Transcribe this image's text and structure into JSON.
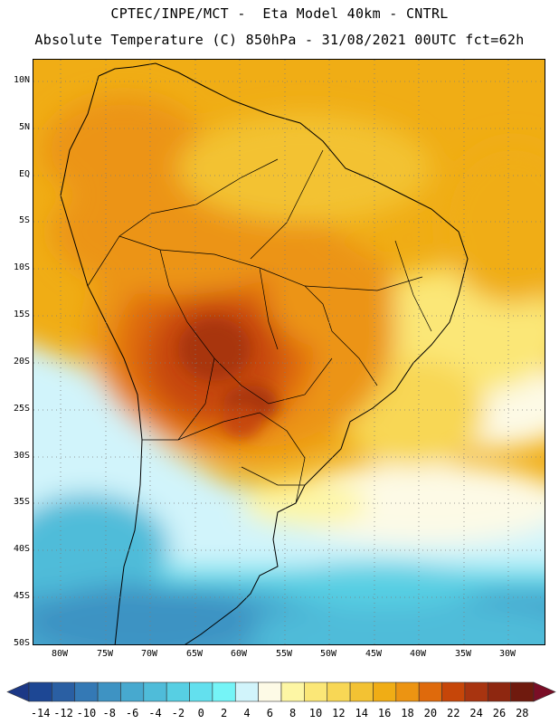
{
  "title": {
    "line1": "CPTEC/INPE/MCT -  Eta Model 40km - CNTRL",
    "line2": "Absolute Temperature (C) 850hPa - 31/08/2021 00UTC fct=62h"
  },
  "lat_labels": [
    "10N",
    "5N",
    "EQ",
    "5S",
    "10S",
    "15S",
    "20S",
    "25S",
    "30S",
    "35S",
    "40S",
    "45S",
    "50S"
  ],
  "lon_labels": [
    "80W",
    "75W",
    "70W",
    "65W",
    "60W",
    "55W",
    "50W",
    "45W",
    "40W",
    "35W",
    "30W"
  ],
  "colorbar": {
    "labels": [
      "-14",
      "-12",
      "-10",
      "-8",
      "-6",
      "-4",
      "-2",
      "0",
      "2",
      "4",
      "6",
      "8",
      "10",
      "12",
      "14",
      "16",
      "18",
      "20",
      "22",
      "24",
      "26",
      "28"
    ],
    "colors": [
      "#1d4794",
      "#2a5fa3",
      "#3479b5",
      "#3e93c3",
      "#47a9cf",
      "#4fbcd9",
      "#57cfe3",
      "#63e0ee",
      "#75f4f7",
      "#d1f4fb",
      "#fdfae6",
      "#fdf6a4",
      "#fbe777",
      "#f8d755",
      "#f3c233",
      "#f0ad15",
      "#ec9412",
      "#df6a0c",
      "#c64609",
      "#a83410",
      "#8e2710",
      "#6f1a0e"
    ],
    "under_color": "#1c3886",
    "over_color": "#7a0e26"
  }
}
